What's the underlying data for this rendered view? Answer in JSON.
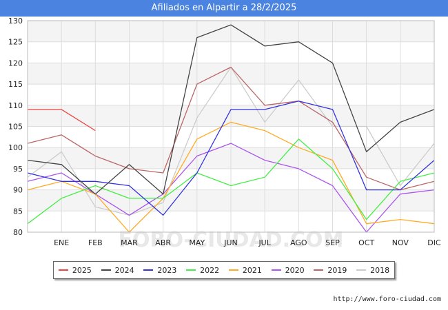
{
  "chart_data": {
    "type": "line",
    "title": "Afiliados en Alpartir a 28/2/2025",
    "xlabel": "",
    "ylabel": "",
    "categories": [
      "",
      "ENE",
      "FEB",
      "MAR",
      "ABR",
      "MAY",
      "JUN",
      "JUL",
      "AGO",
      "SEP",
      "OCT",
      "NOV",
      "DIC"
    ],
    "ylim": [
      80,
      130
    ],
    "yticks": [
      80,
      85,
      90,
      95,
      100,
      105,
      110,
      115,
      120,
      125,
      130
    ],
    "legend_position": "bottom",
    "series": [
      {
        "name": "2025",
        "color": "#ee4444",
        "values": [
          109,
          109,
          104,
          null,
          null,
          null,
          null,
          null,
          null,
          null,
          null,
          null,
          null
        ]
      },
      {
        "name": "2024",
        "color": "#444444",
        "values": [
          97,
          96,
          89,
          96,
          89,
          126,
          129,
          124,
          125,
          120,
          99,
          106,
          109
        ]
      },
      {
        "name": "2023",
        "color": "#3333dd",
        "values": [
          94,
          92,
          92,
          91,
          84,
          94,
          109,
          109,
          111,
          109,
          90,
          90,
          97
        ]
      },
      {
        "name": "2022",
        "color": "#44ee44",
        "values": [
          82,
          88,
          91,
          88,
          88,
          94,
          91,
          93,
          102,
          95,
          83,
          92,
          94
        ]
      },
      {
        "name": "2021",
        "color": "#ffaa22",
        "values": [
          90,
          92,
          89,
          80,
          88,
          102,
          106,
          104,
          100,
          97,
          82,
          83,
          82
        ]
      },
      {
        "name": "2020",
        "color": "#aa55ee",
        "values": [
          92,
          94,
          89,
          84,
          89,
          98,
          101,
          97,
          95,
          91,
          80,
          89,
          90
        ]
      },
      {
        "name": "2019",
        "color": "#bb6666",
        "values": [
          101,
          103,
          98,
          95,
          94,
          115,
          119,
          110,
          111,
          106,
          93,
          90,
          92
        ]
      },
      {
        "name": "2018",
        "color": "#cccccc",
        "values": [
          93,
          99,
          86,
          84,
          87,
          107,
          119,
          106,
          116,
          105,
          105,
          91,
          101
        ]
      }
    ]
  },
  "source": "http://www.foro-ciudad.com",
  "watermark": "FORO-CIUDAD.COM"
}
